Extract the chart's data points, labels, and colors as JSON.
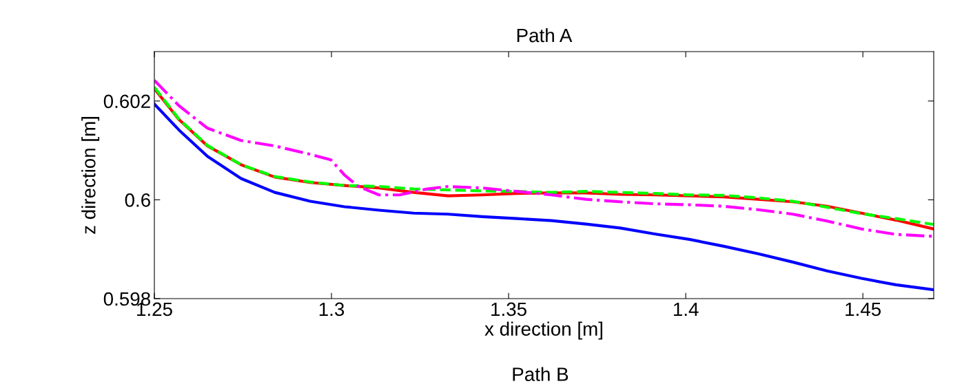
{
  "chart_data": {
    "type": "line",
    "title": "Path A",
    "xlabel": "x direction [m]",
    "ylabel": "z direction [m]",
    "annotations": [
      "Path B"
    ],
    "xlim": [
      1.25,
      1.47
    ],
    "xticks": [
      1.25,
      1.3,
      1.35,
      1.4,
      1.45
    ],
    "ylim": [
      0.598,
      0.603
    ],
    "yticks": [
      0.598,
      0.6,
      0.602
    ],
    "grid": false,
    "legend": false,
    "x": [
      1.25,
      1.257,
      1.265,
      1.2745,
      1.284,
      1.294,
      1.3037,
      1.3134,
      1.3232,
      1.3329,
      1.3426,
      1.3523,
      1.3621,
      1.3718,
      1.3815,
      1.3912,
      1.401,
      1.4107,
      1.4204,
      1.4302,
      1.4399,
      1.4496,
      1.4593,
      1.47
    ],
    "series": [
      {
        "color": "#0000ff",
        "line_style": "solid",
        "values": [
          0.60194,
          0.60141,
          0.60088,
          0.60043,
          0.60015,
          0.59997,
          0.59986,
          0.59979,
          0.59973,
          0.59971,
          0.59966,
          0.59962,
          0.59958,
          0.59951,
          0.59943,
          0.59931,
          0.5992,
          0.59906,
          0.59891,
          0.59874,
          0.59856,
          0.59841,
          0.59828,
          0.59818
        ]
      },
      {
        "color": "#ff0000",
        "line_style": "solid",
        "values": [
          0.60225,
          0.60162,
          0.60109,
          0.60071,
          0.60046,
          0.60035,
          0.60029,
          0.60024,
          0.60015,
          0.60008,
          0.6001,
          0.60013,
          0.60014,
          0.60014,
          0.60011,
          0.6001,
          0.60008,
          0.60006,
          0.60001,
          0.59996,
          0.59987,
          0.59973,
          0.59959,
          0.59941
        ]
      },
      {
        "color": "#00ff00",
        "line_style": "dashed",
        "values": [
          0.60228,
          0.60163,
          0.6011,
          0.60071,
          0.60047,
          0.60036,
          0.60029,
          0.60027,
          0.60022,
          0.6002,
          0.60018,
          0.60017,
          0.60015,
          0.60017,
          0.60015,
          0.60013,
          0.6001,
          0.60009,
          0.60004,
          0.59997,
          0.59985,
          0.59972,
          0.59962,
          0.5995
        ]
      },
      {
        "color": "#ff00ff",
        "line_style": "dashdot",
        "x": [
          1.25,
          1.257,
          1.265,
          1.2745,
          1.284,
          1.294,
          1.2998,
          1.3037,
          1.3076,
          1.3134,
          1.3193,
          1.327,
          1.3329,
          1.3426,
          1.3523,
          1.3621,
          1.3718,
          1.3815,
          1.3912,
          1.401,
          1.4107,
          1.4204,
          1.4302,
          1.4399,
          1.4496,
          1.4593,
          1.47
        ],
        "values": [
          0.60242,
          0.6019,
          0.60145,
          0.6012,
          0.60109,
          0.60092,
          0.60081,
          0.6005,
          0.60027,
          0.6001,
          0.6001,
          0.60022,
          0.60027,
          0.60024,
          0.60017,
          0.6001,
          0.60001,
          0.59996,
          0.59992,
          0.5999,
          0.59987,
          0.5998,
          0.59971,
          0.59957,
          0.59941,
          0.5993,
          0.59926
        ]
      }
    ]
  }
}
